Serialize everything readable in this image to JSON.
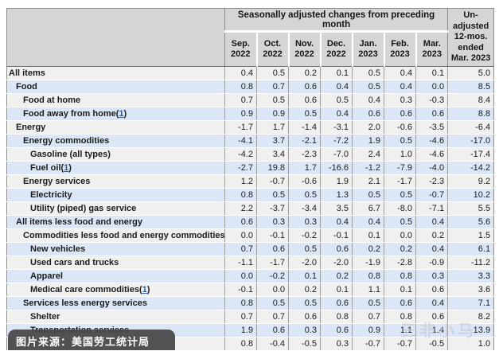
{
  "table": {
    "group_header": "Seasonally adjusted changes from preceding month",
    "unadjusted_header_lines": [
      "Un-",
      "adjusted",
      "12-mos.",
      "ended",
      "Mar. 2023"
    ],
    "month_columns": [
      {
        "month": "Sep.",
        "year": "2022"
      },
      {
        "month": "Oct.",
        "year": "2022"
      },
      {
        "month": "Nov.",
        "year": "2022"
      },
      {
        "month": "Dec.",
        "year": "2022"
      },
      {
        "month": "Jan.",
        "year": "2023"
      },
      {
        "month": "Feb.",
        "year": "2023"
      },
      {
        "month": "Mar.",
        "year": "2023"
      }
    ],
    "rows": [
      {
        "label": "All items",
        "level": 0,
        "footnote": null,
        "values": [
          "0.4",
          "0.5",
          "0.2",
          "0.1",
          "0.5",
          "0.4",
          "0.1",
          "5.0"
        ]
      },
      {
        "label": "Food",
        "level": 1,
        "footnote": null,
        "values": [
          "0.8",
          "0.7",
          "0.6",
          "0.4",
          "0.5",
          "0.4",
          "0.0",
          "8.5"
        ]
      },
      {
        "label": "Food at home",
        "level": 2,
        "footnote": null,
        "values": [
          "0.7",
          "0.5",
          "0.6",
          "0.5",
          "0.4",
          "0.3",
          "-0.3",
          "8.4"
        ]
      },
      {
        "label": "Food away from home",
        "level": 2,
        "footnote": "1",
        "values": [
          "0.9",
          "0.9",
          "0.5",
          "0.4",
          "0.6",
          "0.6",
          "0.6",
          "8.8"
        ]
      },
      {
        "label": "Energy",
        "level": 1,
        "footnote": null,
        "values": [
          "-1.7",
          "1.7",
          "-1.4",
          "-3.1",
          "2.0",
          "-0.6",
          "-3.5",
          "-6.4"
        ]
      },
      {
        "label": "Energy commodities",
        "level": 2,
        "footnote": null,
        "values": [
          "-4.1",
          "3.7",
          "-2.1",
          "-7.2",
          "1.9",
          "0.5",
          "-4.6",
          "-17.0"
        ]
      },
      {
        "label": "Gasoline (all types)",
        "level": 3,
        "footnote": null,
        "values": [
          "-4.2",
          "3.4",
          "-2.3",
          "-7.0",
          "2.4",
          "1.0",
          "-4.6",
          "-17.4"
        ]
      },
      {
        "label": "Fuel oil",
        "level": 3,
        "footnote": "1",
        "values": [
          "-2.7",
          "19.8",
          "1.7",
          "-16.6",
          "-1.2",
          "-7.9",
          "-4.0",
          "-14.2"
        ]
      },
      {
        "label": "Energy services",
        "level": 2,
        "footnote": null,
        "values": [
          "1.2",
          "-0.7",
          "-0.6",
          "1.9",
          "2.1",
          "-1.7",
          "-2.3",
          "9.2"
        ]
      },
      {
        "label": "Electricity",
        "level": 3,
        "footnote": null,
        "values": [
          "0.8",
          "0.5",
          "0.5",
          "1.3",
          "0.5",
          "0.5",
          "-0.7",
          "10.2"
        ]
      },
      {
        "label": "Utility (piped) gas service",
        "level": 3,
        "footnote": null,
        "values": [
          "2.2",
          "-3.7",
          "-3.4",
          "3.5",
          "6.7",
          "-8.0",
          "-7.1",
          "5.5"
        ]
      },
      {
        "label": "All items less food and energy",
        "level": 1,
        "footnote": null,
        "values": [
          "0.6",
          "0.3",
          "0.3",
          "0.4",
          "0.4",
          "0.5",
          "0.4",
          "5.6"
        ]
      },
      {
        "label": "Commodities less food and energy commodities",
        "level": 2,
        "footnote": null,
        "values": [
          "0.0",
          "-0.1",
          "-0.2",
          "-0.1",
          "0.1",
          "0.0",
          "0.2",
          "1.5"
        ]
      },
      {
        "label": "New vehicles",
        "level": 3,
        "footnote": null,
        "values": [
          "0.7",
          "0.6",
          "0.5",
          "0.6",
          "0.2",
          "0.2",
          "0.4",
          "6.1"
        ]
      },
      {
        "label": "Used cars and trucks",
        "level": 3,
        "footnote": null,
        "values": [
          "-1.1",
          "-1.7",
          "-2.0",
          "-2.0",
          "-1.9",
          "-2.8",
          "-0.9",
          "-11.2"
        ]
      },
      {
        "label": "Apparel",
        "level": 3,
        "footnote": null,
        "values": [
          "0.0",
          "-0.2",
          "0.1",
          "0.2",
          "0.8",
          "0.8",
          "0.3",
          "3.3"
        ]
      },
      {
        "label": "Medical care commodities",
        "level": 3,
        "footnote": "1",
        "values": [
          "-0.1",
          "0.0",
          "0.2",
          "0.1",
          "1.1",
          "0.1",
          "0.6",
          "3.6"
        ]
      },
      {
        "label": "Services less energy services",
        "level": 2,
        "footnote": null,
        "values": [
          "0.8",
          "0.5",
          "0.5",
          "0.6",
          "0.5",
          "0.6",
          "0.4",
          "7.1"
        ]
      },
      {
        "label": "Shelter",
        "level": 3,
        "footnote": null,
        "values": [
          "0.7",
          "0.7",
          "0.6",
          "0.8",
          "0.7",
          "0.8",
          "0.6",
          "8.2"
        ]
      },
      {
        "label": "Transportation services",
        "level": 3,
        "footnote": null,
        "values": [
          "1.9",
          "0.6",
          "0.3",
          "0.6",
          "0.9",
          "1.1",
          "1.4",
          "13.9"
        ]
      },
      {
        "label": "",
        "level": 3,
        "footnote": null,
        "values": [
          "0.8",
          "-0.4",
          "-0.5",
          "0.3",
          "-0.7",
          "-0.7",
          "-0.5",
          "1.0"
        ]
      }
    ],
    "colors": {
      "header_bg": "#d5d5d3",
      "row_gray": "#f0f0ee",
      "row_blue": "#dbe6f7",
      "link": "#2b5fa3",
      "border_dark": "#8d8d8d"
    }
  },
  "watermarks": {
    "source_text": "图片来源：美国劳工统计局",
    "site_text": "三非小马"
  }
}
